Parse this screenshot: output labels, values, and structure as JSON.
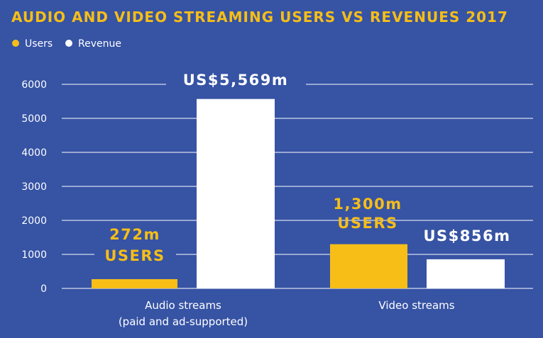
{
  "chart_data": {
    "type": "bar",
    "title": "AUDIO AND VIDEO STREAMING USERS VS REVENUES 2017",
    "categories": [
      "Audio streams",
      "Video streams"
    ],
    "category_sublabels": [
      "(paid and ad-supported)",
      ""
    ],
    "series": [
      {
        "name": "Users",
        "values": [
          272,
          1300
        ],
        "color": "#F6BE17"
      },
      {
        "name": "Revenue",
        "values": [
          5569,
          856
        ],
        "color": "#FFFFFF"
      }
    ],
    "data_labels": [
      [
        "272m",
        "USERS"
      ],
      [
        "US$5,569m"
      ],
      [
        "1,300m",
        "USERS"
      ],
      [
        "US$856m"
      ]
    ],
    "yticks": [
      "0",
      "1000",
      "2000",
      "3000",
      "4000",
      "5000",
      "6000"
    ],
    "ylim": [
      0,
      6000
    ],
    "grid": true,
    "legend_position": "top-left"
  },
  "colors": {
    "background": "#3653A4",
    "accent": "#F6BE17",
    "grid": "#FFFFFF",
    "text": "#FFFFFF"
  }
}
